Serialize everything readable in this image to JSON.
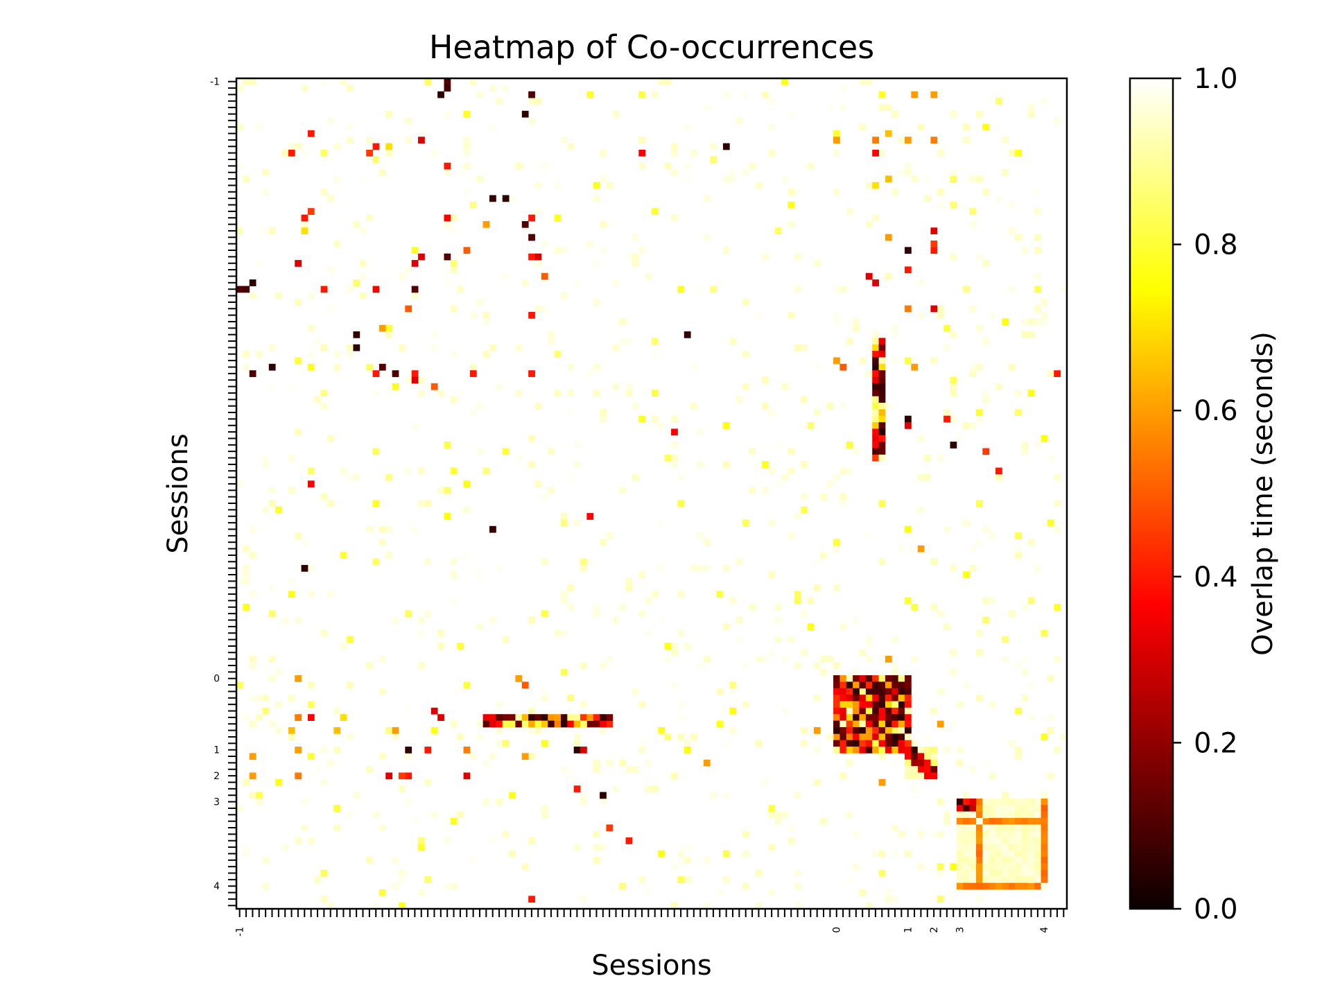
{
  "chart_data": {
    "type": "heatmap",
    "title": "Heatmap of Co-occurrences",
    "xlabel": "Sessions",
    "ylabel": "Sessions",
    "colorbar": {
      "label": "Overlap time (seconds)",
      "range": [
        0.0,
        1.0
      ],
      "ticks": [
        "0.0",
        "0.2",
        "0.4",
        "0.6",
        "0.8",
        "1.0"
      ],
      "colormap": "hot"
    },
    "grid_size": 128,
    "session_ticks": [
      {
        "label": "-1",
        "index": 0
      },
      {
        "label": "0",
        "index": 92
      },
      {
        "label": "1",
        "index": 103
      },
      {
        "label": "2",
        "index": 107
      },
      {
        "label": "3",
        "index": 111
      },
      {
        "label": "4",
        "index": 124
      }
    ],
    "background_value": 1.0,
    "cells": [
      [
        1,
        32,
        0.08
      ],
      [
        0,
        32,
        0.1
      ],
      [
        2,
        31,
        0.05
      ],
      [
        10,
        75,
        0.05
      ],
      [
        9,
        28,
        0.3
      ],
      [
        11,
        62,
        0.35
      ],
      [
        22,
        44,
        0.1
      ],
      [
        44,
        5,
        0.05
      ],
      [
        45,
        2,
        0.1
      ],
      [
        30,
        47,
        0.5
      ],
      [
        39,
        18,
        0.06
      ],
      [
        45,
        45,
        0.4
      ],
      [
        41,
        18,
        0.05
      ],
      [
        32,
        13,
        0.4
      ],
      [
        45,
        36,
        0.4
      ],
      [
        45,
        24,
        0.1
      ],
      [
        54,
        67,
        0.35
      ],
      [
        45,
        21,
        0.4
      ],
      [
        69,
        39,
        0.06
      ],
      [
        97,
        30,
        0.3
      ],
      [
        98,
        31,
        0.3
      ],
      [
        117,
        60,
        0.4
      ],
      [
        98,
        11,
        0.35
      ],
      [
        98,
        9,
        0.55
      ],
      [
        8,
        11,
        0.4
      ],
      [
        20,
        11,
        0.45
      ],
      [
        27,
        32,
        0.1
      ],
      [
        26,
        35,
        0.5
      ],
      [
        28,
        27,
        0.3
      ],
      [
        10,
        21,
        0.4
      ],
      [
        10,
        23,
        0.7
      ],
      [
        27,
        45,
        0.4
      ],
      [
        27,
        46,
        0.3
      ],
      [
        32,
        21,
        0.35
      ],
      [
        38,
        22,
        0.6
      ],
      [
        92,
        43,
        0.6
      ],
      [
        93,
        44,
        0.5
      ],
      [
        104,
        44,
        0.6
      ],
      [
        100,
        89,
        0.6
      ],
      [
        109,
        52,
        0.4
      ],
      [
        100,
        8,
        0.65
      ],
      [
        100,
        24,
        0.6
      ],
      [
        103,
        9,
        0.6
      ],
      [
        107,
        9,
        0.55
      ],
      [
        92,
        9,
        0.6
      ],
      [
        104,
        2,
        0.6
      ],
      [
        107,
        2,
        0.6
      ],
      [
        103,
        26,
        0.05
      ],
      [
        107,
        26,
        0.4
      ],
      [
        103,
        35,
        0.55
      ],
      [
        107,
        35,
        0.3
      ],
      [
        98,
        16,
        0.7
      ],
      [
        100,
        15,
        0.65
      ],
      [
        107,
        23,
        0.3
      ],
      [
        107,
        25,
        0.45
      ],
      [
        103,
        52,
        0.05
      ],
      [
        103,
        53,
        0.3
      ],
      [
        103,
        29,
        0.4
      ],
      [
        110,
        56,
        0.05
      ],
      [
        115,
        57,
        0.45
      ],
      [
        108,
        99,
        0.6
      ],
      [
        126,
        45,
        0.4
      ],
      [
        103,
        69,
        0.75
      ],
      [
        105,
        72,
        0.6
      ]
    ],
    "blocks": [
      {
        "rows": [
          92,
          103
        ],
        "cols": [
          92,
          103
        ],
        "mix": "dark"
      },
      {
        "rows": [
          40,
          58
        ],
        "cols": [
          98,
          99
        ],
        "mix": "dark"
      },
      {
        "rows": [
          98,
          99
        ],
        "cols": [
          38,
          57
        ],
        "mix": "dark"
      },
      {
        "rows": [
          111,
          124
        ],
        "cols": [
          111,
          124
        ],
        "mix": "frame"
      },
      {
        "rows": [
          103,
          107
        ],
        "cols": [
          103,
          107
        ],
        "mix": "diag"
      }
    ]
  }
}
